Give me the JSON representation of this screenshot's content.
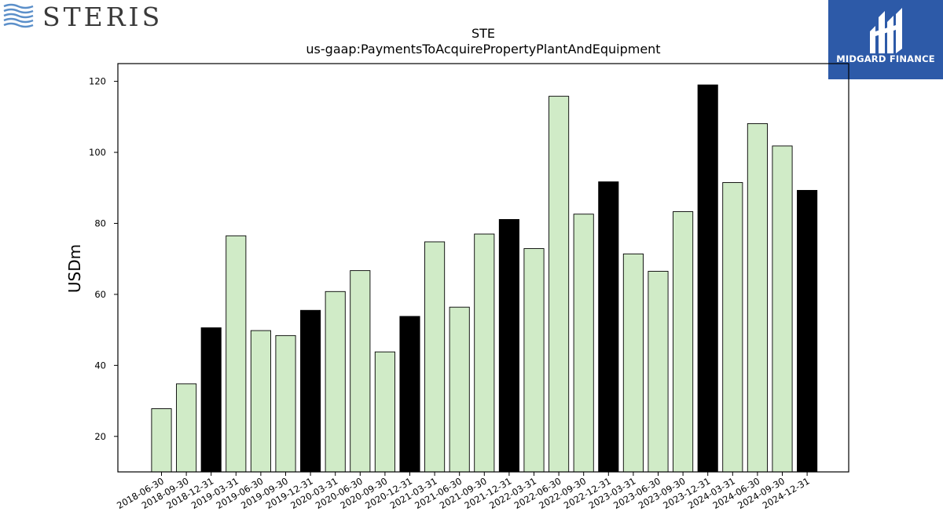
{
  "brand_left": {
    "name": "STERIS",
    "accent": "#5b8fc9"
  },
  "brand_right": {
    "name": "MIDGARD FINANCE",
    "bg": "#2d5aa8"
  },
  "chart_data": {
    "type": "bar",
    "title": "STE",
    "subtitle": "us-gaap:PaymentsToAcquirePropertyPlantAndEquipment",
    "xlabel": "",
    "ylabel": "USDm",
    "ylim": [
      10,
      125
    ],
    "yticks": [
      20,
      40,
      60,
      80,
      100,
      120
    ],
    "grid": false,
    "categories": [
      "2018-06-30",
      "2018-09-30",
      "2018-12-31",
      "2019-03-31",
      "2019-06-30",
      "2019-09-30",
      "2019-12-31",
      "2020-03-31",
      "2020-06-30",
      "2020-09-30",
      "2020-12-31",
      "2021-03-31",
      "2021-06-30",
      "2021-09-30",
      "2021-12-31",
      "2022-03-31",
      "2022-06-30",
      "2022-09-30",
      "2022-12-31",
      "2023-03-31",
      "2023-06-30",
      "2023-09-30",
      "2023-12-31",
      "2024-03-31",
      "2024-06-30",
      "2024-09-30",
      "2024-12-31"
    ],
    "values": [
      27.8,
      34.8,
      50.6,
      76.5,
      49.8,
      48.4,
      55.5,
      60.8,
      66.7,
      43.8,
      53.8,
      74.8,
      56.4,
      77.0,
      81.1,
      72.9,
      115.8,
      82.6,
      91.7,
      71.4,
      66.5,
      83.3,
      119.0,
      91.5,
      108.1,
      101.8,
      89.3
    ],
    "colors": {
      "quarter": "#d0ebc7",
      "year_end": "#000000",
      "edge": "#000000"
    }
  }
}
